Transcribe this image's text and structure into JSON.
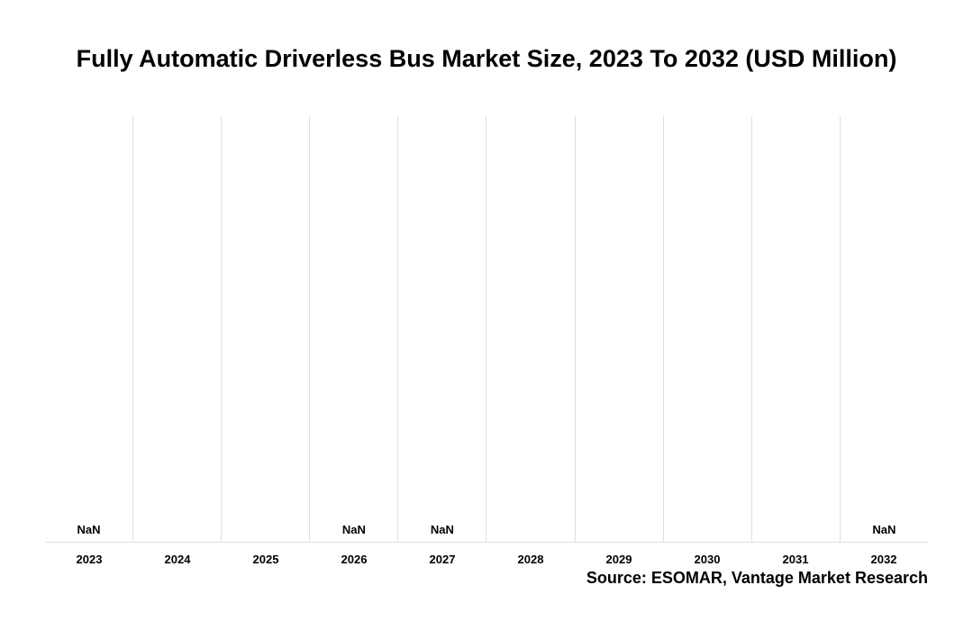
{
  "chart": {
    "type": "bar",
    "title": "Fully Automatic Driverless Bus Market Size, 2023 To 2032 (USD Million)",
    "title_fontsize": 27,
    "title_color": "#000000",
    "categories": [
      "2023",
      "2024",
      "2025",
      "2026",
      "2027",
      "2028",
      "2029",
      "2030",
      "2031",
      "2032"
    ],
    "values": [
      null,
      null,
      null,
      null,
      null,
      null,
      null,
      null,
      null,
      null
    ],
    "value_labels_shown": [
      "NaN",
      "",
      "",
      "NaN",
      "NaN",
      "",
      "",
      "",
      "",
      "NaN"
    ],
    "value_label_fontsize": 13,
    "value_label_fontweight": 700,
    "value_label_color": "#000000",
    "x_tick_fontsize": 13,
    "x_tick_fontweight": 700,
    "x_tick_color": "#000000",
    "background_color": "#ffffff",
    "grid_color": "#e0e0e0",
    "grid_vertical": true,
    "grid_horizontal": false,
    "source_text": "Source: ESOMAR, Vantage Market Research",
    "source_fontsize": 18,
    "source_fontweight": 700,
    "source_color": "#000000",
    "plot_border_bottom": true
  }
}
